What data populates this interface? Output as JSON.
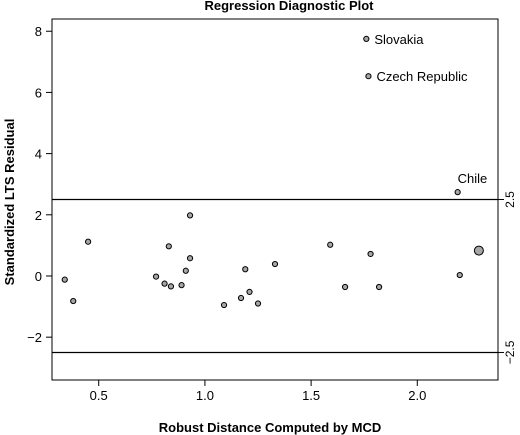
{
  "chart_data": {
    "type": "scatter",
    "title": "Regression Diagnostic Plot",
    "xlabel": "Robust Distance Computed by MCD",
    "ylabel": "Standardized LTS Residual",
    "xlim": [
      0.28,
      2.38
    ],
    "ylim": [
      -3.4,
      8.4
    ],
    "xticks": [
      0.5,
      1.0,
      1.5,
      2.0
    ],
    "xtick_labels": [
      "0.5",
      "1.0",
      "1.5",
      "2.0"
    ],
    "yticks": [
      -2,
      0,
      2,
      4,
      6,
      8
    ],
    "ytick_labels": [
      "−2",
      "0",
      "2",
      "4",
      "6",
      "8"
    ],
    "cutoff_lines": [
      2.5,
      -2.5
    ],
    "cutoff_labels": [
      "2.5",
      "−2.5"
    ],
    "points": [
      {
        "x": 0.34,
        "y": -0.12
      },
      {
        "x": 0.38,
        "y": -0.82
      },
      {
        "x": 0.45,
        "y": 1.12
      },
      {
        "x": 0.77,
        "y": -0.02
      },
      {
        "x": 0.81,
        "y": -0.25
      },
      {
        "x": 0.83,
        "y": 0.97
      },
      {
        "x": 0.84,
        "y": -0.34
      },
      {
        "x": 0.89,
        "y": -0.3
      },
      {
        "x": 0.91,
        "y": 0.17
      },
      {
        "x": 0.93,
        "y": 1.98
      },
      {
        "x": 0.93,
        "y": 0.58
      },
      {
        "x": 1.09,
        "y": -0.95
      },
      {
        "x": 1.17,
        "y": -0.72
      },
      {
        "x": 1.19,
        "y": 0.22
      },
      {
        "x": 1.21,
        "y": -0.52
      },
      {
        "x": 1.25,
        "y": -0.9
      },
      {
        "x": 1.33,
        "y": 0.39
      },
      {
        "x": 1.59,
        "y": 1.02
      },
      {
        "x": 1.66,
        "y": -0.36
      },
      {
        "x": 1.78,
        "y": 0.72
      },
      {
        "x": 1.82,
        "y": -0.36
      },
      {
        "x": 1.76,
        "y": 7.75,
        "label": "Slovakia"
      },
      {
        "x": 1.77,
        "y": 6.53,
        "label": "Czech Republic"
      },
      {
        "x": 2.19,
        "y": 2.74,
        "label": "Chile"
      },
      {
        "x": 2.2,
        "y": 0.03
      },
      {
        "x": 2.29,
        "y": 0.83,
        "large": true
      }
    ]
  }
}
